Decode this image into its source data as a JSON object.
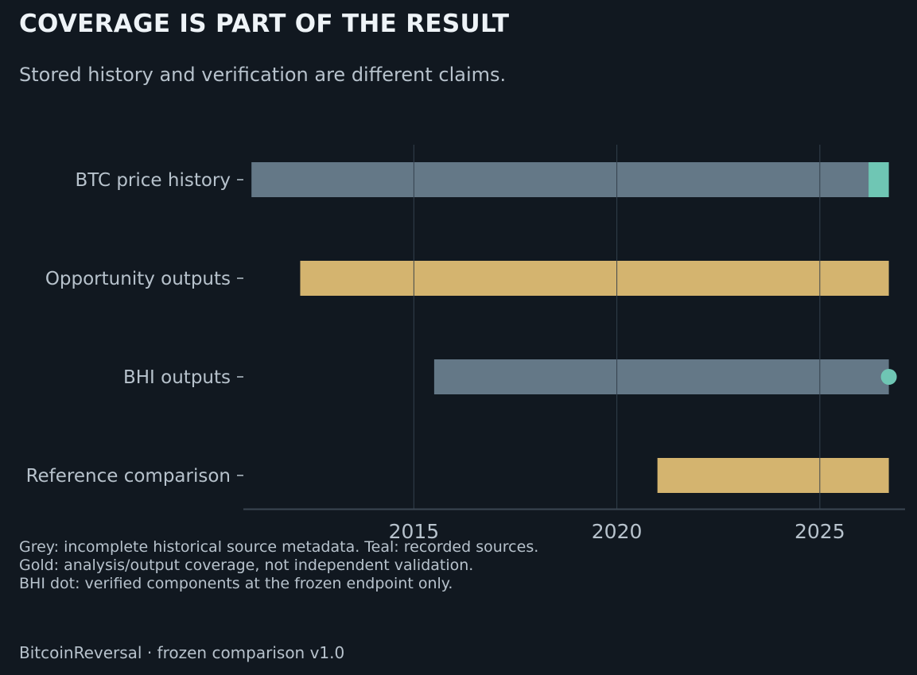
{
  "header": {
    "title": "COVERAGE IS PART OF THE RESULT",
    "subtitle": "Stored history and verification are different claims."
  },
  "notes": [
    "Grey: incomplete historical source metadata. Teal: recorded sources.",
    "Gold: analysis/output coverage, not independent validation.",
    "BHI dot: verified components at the frozen endpoint only."
  ],
  "footer": "BitcoinReversal · frozen comparison v1.0",
  "colors": {
    "background": "#111820",
    "grey": "#647887",
    "teal": "#6fc6b4",
    "gold": "#d4b46f",
    "grid": "#2f3b47",
    "axis": "#3a4652",
    "text": "#b7c2cc"
  },
  "chart_data": {
    "type": "bar",
    "orientation": "horizontal",
    "title": "",
    "xlabel": "",
    "ylabel": "",
    "xlim": [
      2010.8,
      2027.1
    ],
    "xticks": [
      2015,
      2020,
      2025
    ],
    "grid": "vertical",
    "categories": [
      "BTC price history",
      "Opportunity outputs",
      "BHI outputs",
      "Reference comparison"
    ],
    "segments": [
      {
        "category": "BTC price history",
        "start": 2011.0,
        "end": 2026.2,
        "color": "grey",
        "meaning": "incomplete historical source metadata"
      },
      {
        "category": "BTC price history",
        "start": 2026.2,
        "end": 2026.7,
        "color": "teal",
        "meaning": "recorded sources"
      },
      {
        "category": "Opportunity outputs",
        "start": 2012.2,
        "end": 2026.7,
        "color": "gold",
        "meaning": "analysis/output coverage"
      },
      {
        "category": "BHI outputs",
        "start": 2015.5,
        "end": 2026.7,
        "color": "grey",
        "meaning": "incomplete historical source metadata"
      },
      {
        "category": "Reference comparison",
        "start": 2021.0,
        "end": 2026.7,
        "color": "gold",
        "meaning": "analysis/output coverage"
      }
    ],
    "points": [
      {
        "category": "BHI outputs",
        "x": 2026.7,
        "color": "teal",
        "meaning": "verified components at the frozen endpoint"
      }
    ]
  }
}
